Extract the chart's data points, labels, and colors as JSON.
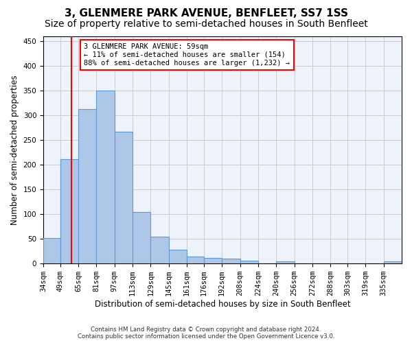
{
  "title": "3, GLENMERE PARK AVENUE, BENFLEET, SS7 1SS",
  "subtitle": "Size of property relative to semi-detached houses in South Benfleet",
  "xlabel": "Distribution of semi-detached houses by size in South Benfleet",
  "ylabel": "Number of semi-detached properties",
  "footer1": "Contains HM Land Registry data © Crown copyright and database right 2024.",
  "footer2": "Contains public sector information licensed under the Open Government Licence v3.0.",
  "bar_edges": [
    34,
    49,
    65,
    81,
    97,
    113,
    129,
    145,
    161,
    176,
    192,
    208,
    224,
    240,
    256,
    272,
    288,
    303,
    319,
    335,
    351
  ],
  "bar_heights": [
    51,
    211,
    312,
    350,
    266,
    104,
    55,
    28,
    14,
    11,
    10,
    6,
    0,
    5,
    0,
    0,
    0,
    0,
    0,
    5
  ],
  "bar_color": "#aec6e8",
  "bar_edge_color": "#5b9bd5",
  "vline_x": 59,
  "vline_color": "red",
  "annotation_text": "3 GLENMERE PARK AVENUE: 59sqm\n← 11% of semi-detached houses are smaller (154)\n88% of semi-detached houses are larger (1,232) →",
  "annotation_box_color": "white",
  "annotation_box_edge": "red",
  "ylim": [
    0,
    460
  ],
  "yticks": [
    0,
    50,
    100,
    150,
    200,
    250,
    300,
    350,
    400,
    450
  ],
  "bg_color": "#eef2fb",
  "grid_color": "#cccccc",
  "title_fontsize": 11,
  "subtitle_fontsize": 10,
  "axis_fontsize": 8.5,
  "tick_fontsize": 7.5
}
